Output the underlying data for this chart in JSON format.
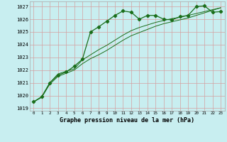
{
  "title": "Graphe pression niveau de la mer (hPa)",
  "bg_color": "#c8eef0",
  "grid_color": "#d4a0a0",
  "line_color": "#1a6e1a",
  "xlim": [
    -0.5,
    23.5
  ],
  "ylim": [
    1018.8,
    1027.4
  ],
  "yticks": [
    1019,
    1020,
    1021,
    1022,
    1023,
    1024,
    1025,
    1026,
    1027
  ],
  "xticks": [
    0,
    1,
    2,
    3,
    4,
    5,
    6,
    7,
    8,
    9,
    10,
    11,
    12,
    13,
    14,
    15,
    16,
    17,
    18,
    19,
    20,
    21,
    22,
    23
  ],
  "series1_x": [
    0,
    1,
    2,
    3,
    4,
    5,
    6,
    7,
    8,
    9,
    10,
    11,
    12,
    13,
    14,
    15,
    16,
    17,
    18,
    19,
    20,
    21,
    22,
    23
  ],
  "series1_y": [
    1019.5,
    1019.9,
    1021.0,
    1021.6,
    1021.85,
    1022.3,
    1022.85,
    1025.0,
    1025.4,
    1025.85,
    1026.3,
    1026.65,
    1026.55,
    1026.0,
    1026.3,
    1026.3,
    1026.0,
    1025.95,
    1026.2,
    1026.3,
    1027.0,
    1027.05,
    1026.55,
    1026.6
  ],
  "series2_x": [
    0,
    1,
    2,
    3,
    4,
    5,
    6,
    7,
    8,
    9,
    10,
    11,
    12,
    13,
    14,
    15,
    16,
    17,
    18,
    19,
    20,
    21,
    22,
    23
  ],
  "series2_y": [
    1019.5,
    1019.9,
    1021.0,
    1021.7,
    1021.9,
    1022.1,
    1022.8,
    1023.2,
    1023.6,
    1023.95,
    1024.35,
    1024.75,
    1025.1,
    1025.35,
    1025.55,
    1025.75,
    1025.9,
    1026.05,
    1026.15,
    1026.3,
    1026.45,
    1026.6,
    1026.75,
    1026.9
  ],
  "series3_x": [
    0,
    1,
    2,
    3,
    4,
    5,
    6,
    7,
    8,
    9,
    10,
    11,
    12,
    13,
    14,
    15,
    16,
    17,
    18,
    19,
    20,
    21,
    22,
    23
  ],
  "series3_y": [
    1019.5,
    1019.85,
    1020.9,
    1021.5,
    1021.75,
    1022.0,
    1022.5,
    1022.9,
    1023.2,
    1023.55,
    1023.95,
    1024.35,
    1024.7,
    1024.95,
    1025.2,
    1025.45,
    1025.65,
    1025.8,
    1025.95,
    1026.1,
    1026.3,
    1026.5,
    1026.7,
    1026.9
  ]
}
